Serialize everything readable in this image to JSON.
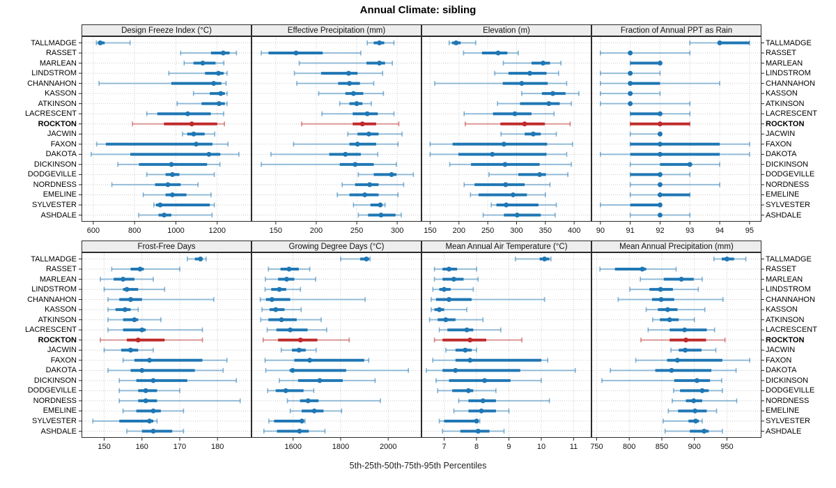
{
  "title": "Annual Climate: sibling",
  "caption": "5th-25th-50th-75th-95th Percentiles",
  "highlight_row": "ROCKTON",
  "percentile_levels": [
    5,
    25,
    50,
    75,
    95
  ],
  "rows": [
    "TALLMADGE",
    "RASSET",
    "MARLEAN",
    "LINDSTROM",
    "CHANNAHON",
    "KASSON",
    "ATKINSON",
    "LACRESCENT",
    "ROCKTON",
    "JACWIN",
    "FAXON",
    "DAKOTA",
    "DICKINSON",
    "DODGEVILLE",
    "NORDNESS",
    "EMELINE",
    "SYLVESTER",
    "ASHDALE"
  ],
  "colors": {
    "normal": "#1f77b4",
    "highlight": "#bf2b2b",
    "grid": "#c9c9c9",
    "strip_bg": "#ededed",
    "border": "#2b2b2b",
    "tick_text": "#111111"
  },
  "chart_data": [
    {
      "type": "dot-whisker",
      "title": "Design Freeze Index (°C)",
      "xlim": [
        543,
        1366
      ],
      "ticks": [
        600,
        800,
        1000,
        1200
      ],
      "values": [
        [
          615,
          622,
          634,
          655,
          778
        ],
        [
          1023,
          1170,
          1229,
          1260,
          1293
        ],
        [
          1040,
          1085,
          1130,
          1192,
          1232
        ],
        [
          966,
          1141,
          1206,
          1231,
          1248
        ],
        [
          628,
          978,
          1183,
          1220,
          1243
        ],
        [
          1085,
          1164,
          1217,
          1237,
          1248
        ],
        [
          1006,
          1124,
          1209,
          1237,
          1248
        ],
        [
          859,
          910,
          1057,
          1169,
          1231
        ],
        [
          790,
          942,
          1077,
          1200,
          1235
        ],
        [
          1032,
          1055,
          1086,
          1139,
          1188
        ],
        [
          616,
          661,
          1098,
          1177,
          1252
        ],
        [
          590,
          779,
          1160,
          1215,
          1305
        ],
        [
          719,
          821,
          978,
          1151,
          1213
        ],
        [
          859,
          950,
          983,
          1017,
          1186
        ],
        [
          690,
          899,
          961,
          1023,
          1107
        ],
        [
          842,
          950,
          983,
          1051,
          1170
        ],
        [
          893,
          904,
          924,
          1164,
          1186
        ],
        [
          820,
          916,
          943,
          978,
          1175
        ]
      ]
    },
    {
      "type": "dot-whisker",
      "title": "Effective Precipitation (mm)",
      "xlim": [
        120,
        330
      ],
      "ticks": [
        150,
        200,
        250,
        300
      ],
      "values": [
        [
          263,
          271,
          278,
          284,
          296
        ],
        [
          132,
          141,
          175,
          208,
          255
        ],
        [
          179,
          262,
          278,
          285,
          294
        ],
        [
          173,
          206,
          240,
          251,
          282
        ],
        [
          176,
          227,
          241,
          254,
          271
        ],
        [
          203,
          236,
          246,
          258,
          283
        ],
        [
          229,
          241,
          250,
          257,
          268
        ],
        [
          207,
          245,
          263,
          276,
          296
        ],
        [
          182,
          245,
          257,
          274,
          302
        ],
        [
          239,
          251,
          265,
          277,
          306
        ],
        [
          172,
          241,
          251,
          274,
          301
        ],
        [
          144,
          216,
          236,
          255,
          276
        ],
        [
          132,
          229,
          248,
          271,
          299
        ],
        [
          252,
          271,
          293,
          299,
          320
        ],
        [
          232,
          248,
          266,
          277,
          308
        ],
        [
          226,
          241,
          260,
          277,
          301
        ],
        [
          246,
          267,
          279,
          282,
          285
        ],
        [
          252,
          264,
          280,
          298,
          305
        ]
      ]
    },
    {
      "type": "dot-whisker",
      "title": "Elevation (m)",
      "xlim": [
        135,
        430
      ],
      "ticks": [
        150,
        200,
        250,
        300,
        350,
        400
      ],
      "values": [
        [
          183,
          188,
          195,
          203,
          229
        ],
        [
          208,
          240,
          268,
          284,
          303
        ],
        [
          277,
          326,
          346,
          358,
          377
        ],
        [
          262,
          286,
          323,
          352,
          373
        ],
        [
          158,
          276,
          309,
          354,
          387
        ],
        [
          309,
          344,
          363,
          385,
          408
        ],
        [
          267,
          306,
          356,
          375,
          395
        ],
        [
          209,
          259,
          297,
          326,
          365
        ],
        [
          211,
          272,
          314,
          349,
          393
        ],
        [
          273,
          314,
          329,
          342,
          369
        ],
        [
          150,
          189,
          278,
          353,
          397
        ],
        [
          150,
          199,
          258,
          352,
          387
        ],
        [
          184,
          221,
          280,
          340,
          395
        ],
        [
          252,
          303,
          340,
          351,
          389
        ],
        [
          209,
          227,
          281,
          314,
          358
        ],
        [
          220,
          234,
          294,
          318,
          350
        ],
        [
          256,
          265,
          282,
          338,
          369
        ],
        [
          242,
          278,
          301,
          342,
          367
        ]
      ]
    },
    {
      "type": "dot-whisker",
      "title": "Fraction of Annual PPT as Rain",
      "xlim": [
        89.7,
        95.4
      ],
      "ticks": [
        90,
        91,
        92,
        93,
        94,
        95
      ],
      "values": [
        [
          93,
          94,
          94,
          95,
          95
        ],
        [
          90,
          91,
          91,
          91,
          93
        ],
        [
          91,
          91,
          92,
          92,
          92
        ],
        [
          90,
          91,
          91,
          91,
          92
        ],
        [
          90,
          91,
          91,
          92,
          94
        ],
        [
          90,
          91,
          91,
          91,
          92
        ],
        [
          90,
          91,
          91,
          91,
          93
        ],
        [
          91,
          91,
          92,
          92,
          93
        ],
        [
          91,
          91,
          92,
          93,
          93
        ],
        [
          91,
          92,
          92,
          92,
          92
        ],
        [
          91,
          91,
          92,
          94,
          95
        ],
        [
          90,
          91,
          92,
          94,
          95
        ],
        [
          91,
          92,
          93,
          93,
          94
        ],
        [
          91,
          91,
          92,
          92,
          93
        ],
        [
          91,
          92,
          92,
          92,
          94
        ],
        [
          91,
          92,
          92,
          93,
          93
        ],
        [
          90,
          91,
          92,
          92,
          92
        ],
        [
          91,
          92,
          92,
          92,
          93
        ]
      ]
    },
    {
      "type": "dot-whisker",
      "title": "Frost-Free Days",
      "xlim": [
        144,
        189
      ],
      "ticks": [
        150,
        160,
        170,
        180
      ],
      "values": [
        [
          172,
          174,
          175.5,
          176,
          177
        ],
        [
          152,
          157,
          159.5,
          160.5,
          170
        ],
        [
          149,
          152.5,
          155,
          158,
          163
        ],
        [
          150,
          155,
          156,
          159,
          166
        ],
        [
          151,
          154,
          157,
          160,
          179
        ],
        [
          151,
          153,
          155.5,
          157,
          159
        ],
        [
          151,
          155,
          158,
          159,
          165
        ],
        [
          151,
          155,
          160,
          161,
          176
        ],
        [
          149,
          156,
          159,
          166,
          176
        ],
        [
          150,
          154.5,
          157,
          159,
          163
        ],
        [
          155,
          158,
          162,
          176,
          182.5
        ],
        [
          151,
          157,
          160,
          174,
          181.5
        ],
        [
          154,
          158.5,
          163,
          172,
          185
        ],
        [
          154,
          159,
          161,
          164,
          170
        ],
        [
          154,
          159,
          161,
          164,
          186
        ],
        [
          155,
          158.5,
          163,
          165,
          171
        ],
        [
          147,
          154,
          162,
          163,
          164
        ],
        [
          156,
          160,
          163,
          168,
          171
        ]
      ]
    },
    {
      "type": "dot-whisker",
      "title": "Growing Degree Days (°C)",
      "xlim": [
        1425,
        2140
      ],
      "ticks": [
        1600,
        1800,
        2000
      ],
      "values": [
        [
          1800,
          1882,
          1908,
          1920,
          1924
        ],
        [
          1496,
          1547,
          1583,
          1624,
          1670
        ],
        [
          1483,
          1537,
          1573,
          1605,
          1695
        ],
        [
          1482,
          1508,
          1542,
          1571,
          1631
        ],
        [
          1462,
          1486,
          1511,
          1588,
          1903
        ],
        [
          1469,
          1501,
          1527,
          1564,
          1634
        ],
        [
          1464,
          1496,
          1551,
          1615,
          1718
        ],
        [
          1491,
          1530,
          1588,
          1661,
          1741
        ],
        [
          1474,
          1537,
          1631,
          1702,
          1836
        ],
        [
          1550,
          1595,
          1625,
          1653,
          1697
        ],
        [
          1482,
          1605,
          1670,
          1899,
          1918
        ],
        [
          1485,
          1585,
          1598,
          1823,
          2085
        ],
        [
          1542,
          1621,
          1712,
          1809,
          1945
        ],
        [
          1493,
          1527,
          1569,
          1644,
          1687
        ],
        [
          1576,
          1629,
          1663,
          1707,
          1967
        ],
        [
          1588,
          1636,
          1689,
          1728,
          1804
        ],
        [
          1498,
          1520,
          1637,
          1644,
          1650
        ],
        [
          1477,
          1532,
          1627,
          1666,
          1734
        ]
      ]
    },
    {
      "type": "dot-whisker",
      "title": "Mean Annual Air Temperature (°C)",
      "xlim": [
        6.3,
        11.55
      ],
      "ticks": [
        7,
        8,
        9,
        10,
        11
      ],
      "values": [
        [
          9.2,
          9.95,
          10.1,
          10.25,
          10.3
        ],
        [
          6.7,
          6.95,
          7.15,
          7.4,
          8.0
        ],
        [
          6.7,
          6.95,
          7.3,
          7.6,
          8.05
        ],
        [
          6.65,
          6.85,
          7.0,
          7.2,
          7.9
        ],
        [
          6.6,
          6.75,
          7.15,
          7.85,
          10.1
        ],
        [
          6.6,
          6.7,
          6.85,
          7.0,
          7.7
        ],
        [
          6.55,
          6.8,
          7.05,
          7.35,
          8.2
        ],
        [
          6.85,
          7.1,
          7.7,
          7.9,
          8.75
        ],
        [
          6.7,
          6.95,
          7.8,
          8.3,
          9.4
        ],
        [
          7.05,
          7.35,
          7.65,
          7.85,
          8.0
        ],
        [
          6.65,
          7.35,
          7.8,
          10.0,
          10.2
        ],
        [
          6.45,
          6.95,
          7.35,
          9.35,
          11.05
        ],
        [
          6.75,
          7.15,
          8.25,
          9.05,
          10.0
        ],
        [
          6.8,
          7.25,
          7.75,
          7.9,
          8.6
        ],
        [
          7.45,
          7.75,
          8.2,
          8.6,
          10.25
        ],
        [
          7.3,
          7.75,
          8.15,
          8.6,
          9.0
        ],
        [
          6.85,
          7.0,
          8.0,
          8.05,
          8.1
        ],
        [
          6.95,
          7.5,
          8.05,
          8.4,
          8.85
        ]
      ]
    },
    {
      "type": "dot-whisker",
      "title": "Mean Annual Precipitation (mm)",
      "xlim": [
        742,
        1003
      ],
      "ticks": [
        750,
        800,
        850,
        900,
        950
      ],
      "values": [
        [
          930,
          942,
          950,
          961,
          979
        ],
        [
          755,
          778,
          820,
          826,
          872
        ],
        [
          817,
          853,
          880,
          899,
          912
        ],
        [
          801,
          831,
          848,
          867,
          906
        ],
        [
          783,
          835,
          849,
          869,
          944
        ],
        [
          826,
          844,
          859,
          874,
          916
        ],
        [
          836,
          847,
          862,
          876,
          900
        ],
        [
          829,
          862,
          885,
          919,
          931
        ],
        [
          818,
          862,
          887,
          918,
          947
        ],
        [
          864,
          876,
          886,
          911,
          933
        ],
        [
          810,
          858,
          874,
          943,
          985
        ],
        [
          771,
          840,
          865,
          926,
          964
        ],
        [
          758,
          869,
          904,
          924,
          942
        ],
        [
          868,
          878,
          912,
          922,
          943
        ],
        [
          866,
          887,
          899,
          912,
          965
        ],
        [
          860,
          875,
          901,
          919,
          934
        ],
        [
          852,
          891,
          902,
          907,
          912
        ],
        [
          855,
          893,
          915,
          922,
          943
        ]
      ]
    }
  ]
}
